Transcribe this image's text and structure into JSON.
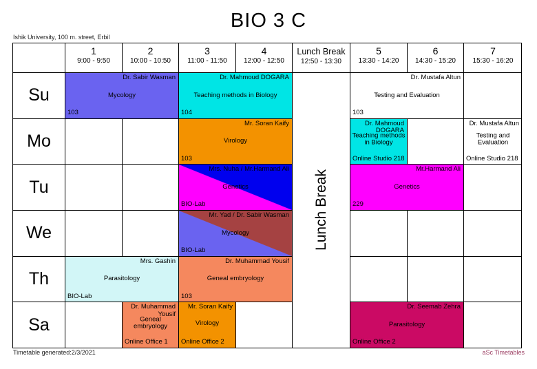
{
  "page": {
    "title": "BIO 3 C",
    "subtitle": "Ishik University, 100 m. street, Erbil",
    "footer_left": "Timetable generated:2/3/2021",
    "footer_right": "aSc Timetables"
  },
  "periods": [
    {
      "label": "1",
      "time": "9:00 - 9:50"
    },
    {
      "label": "2",
      "time": "10:00 - 10:50"
    },
    {
      "label": "3",
      "time": "11:00 - 11:50"
    },
    {
      "label": "4",
      "time": "12:00 - 12:50"
    },
    {
      "label": "Lunch Break",
      "time": "12:50 - 13:30"
    },
    {
      "label": "5",
      "time": "13:30 - 14:20"
    },
    {
      "label": "6",
      "time": "14:30 - 15:20"
    },
    {
      "label": "7",
      "time": "15:30 - 16:20"
    }
  ],
  "days": [
    "Su",
    "Mo",
    "Tu",
    "We",
    "Th",
    "Sa"
  ],
  "lunch_column_label": "Lunch Break",
  "lessons": {
    "su_mycology": {
      "teacher": "Dr. Sabir Wasman",
      "subject": "Mycology",
      "room": "103"
    },
    "su_teaching": {
      "teacher": "Dr. Mahmoud DOGARA",
      "subject": "Teaching methods in Biology",
      "room": "104"
    },
    "su_testing": {
      "teacher": "Dr. Mustafa Altun",
      "subject": "Testing and Evaluation",
      "room": "103"
    },
    "mo_virology": {
      "teacher": "Mr. Soran Kaify",
      "subject": "Virology",
      "room": "103"
    },
    "mo_teaching": {
      "teacher": "Dr. Mahmoud DOGARA",
      "subject": "Teaching methods in Biology",
      "room": "Online Studio 218"
    },
    "mo_testing": {
      "teacher": "Dr. Mustafa Altun",
      "subject": "Testing and Evaluation",
      "room": "Online Studio 218"
    },
    "tu_genetics_lab": {
      "teacher": "Mrs. Nuha / Mr.Harmand Ali",
      "subject": "Genetics",
      "room": "BIO-Lab"
    },
    "tu_genetics": {
      "teacher": "Mr.Harmand Ali",
      "subject": "Genetics",
      "room": "229"
    },
    "we_mycology_lab": {
      "teacher": "Mr. Yad / Dr. Sabir Wasman",
      "subject": "Mycology",
      "room": "BIO-Lab"
    },
    "th_parasitology": {
      "teacher": "Mrs. Gashin",
      "subject": "Parasitology",
      "room": "BIO-Lab"
    },
    "th_embryology": {
      "teacher": "Dr. Muhammad Yousif",
      "subject": "Geneal embryology",
      "room": "103"
    },
    "sa_embryology": {
      "teacher": "Dr. Muhammad Yousif",
      "subject": "Geneal embryology",
      "room": "Online Office 1"
    },
    "sa_virology": {
      "teacher": "Mr. Soran Kaify",
      "subject": "Virology",
      "room": "Online Office 2"
    },
    "sa_parasitology": {
      "teacher": "Dr. Seemab Zehra",
      "subject": "Parasitology",
      "room": "Online Office 2"
    }
  },
  "colors": {
    "mycology_purple": "#6A63F0",
    "teaching_cyan": "#00E5E5",
    "virology_orange": "#F39200",
    "genetics_blue": "#0000EE",
    "genetics_magenta": "#FF00FF",
    "mycology_brick": "#A54242",
    "parasitology_pale_cyan": "#D2F6F7",
    "embryology_salmon": "#F5885E",
    "parasitology_crimson": "#CB0A64",
    "tu_genetics_split": [
      "#0000EE",
      "#FF00FF"
    ],
    "we_mycology_split": [
      "#A54242",
      "#6A63F0"
    ],
    "asc_brand": "#9C3F63"
  }
}
